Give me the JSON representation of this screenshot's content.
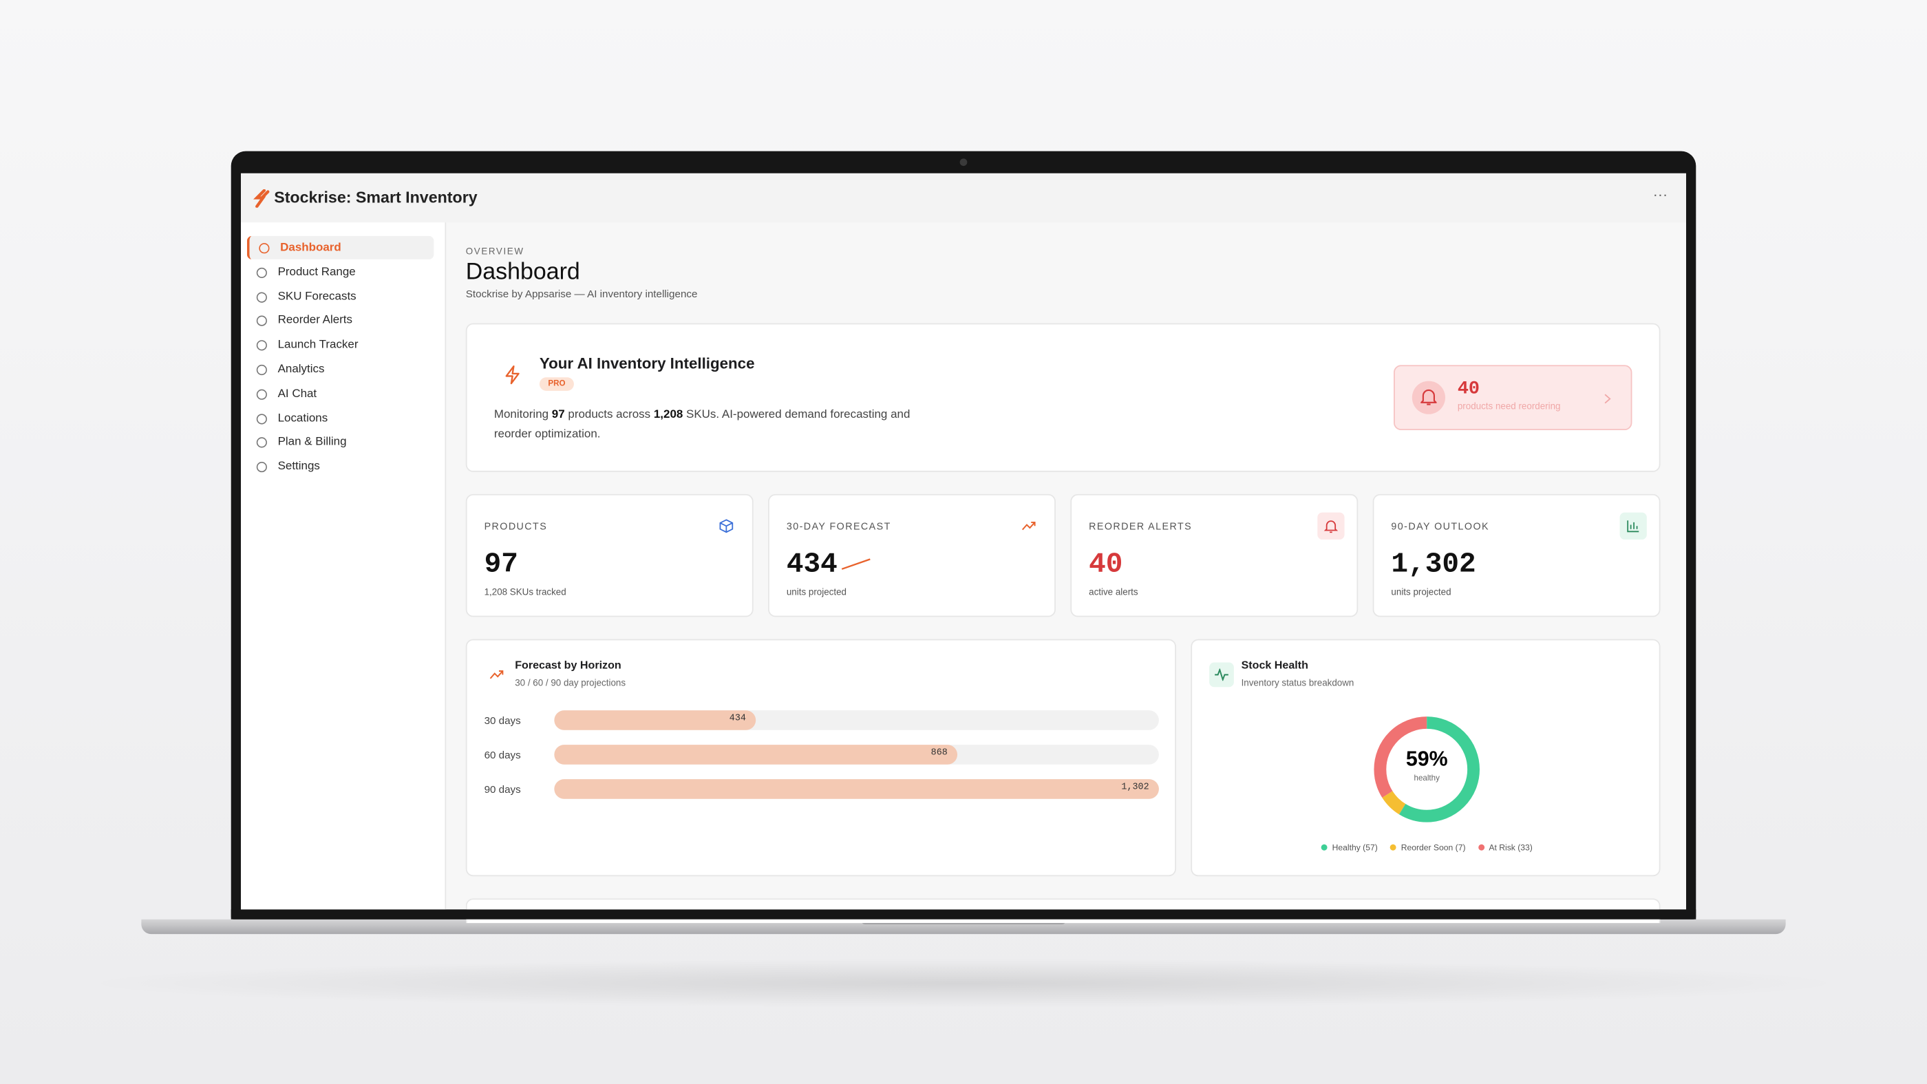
{
  "app": {
    "title": "Stockrise: Smart Inventory",
    "menu": "···"
  },
  "sidebar": {
    "items": [
      "Dashboard",
      "Product Range",
      "SKU Forecasts",
      "Reorder Alerts",
      "Launch Tracker",
      "Analytics",
      "AI Chat",
      "Locations",
      "Plan & Billing",
      "Settings"
    ],
    "active": 0
  },
  "header": {
    "eyebrow": "OVERVIEW",
    "title": "Dashboard",
    "subtitle": "Stockrise by Appsarise — AI inventory intelligence"
  },
  "hero": {
    "title": "Your AI Inventory Intelligence",
    "badge": "PRO",
    "description": [
      "Monitoring ",
      "97",
      " products across ",
      "1,208",
      " SKUs. AI-powered demand forecasting and reorder optimization."
    ],
    "alert": {
      "count": "40",
      "text": "products need reordering"
    }
  },
  "stats": [
    {
      "label": "PRODUCTS",
      "value": "97",
      "sub": "1,208 SKUs tracked"
    },
    {
      "label": "30-DAY FORECAST",
      "value": "434",
      "sub": "units projected"
    },
    {
      "label": "REORDER ALERTS",
      "value": "40",
      "sub": "active alerts"
    },
    {
      "label": "90-DAY OUTLOOK",
      "value": "1,302",
      "sub": "units projected"
    }
  ],
  "forecast": {
    "title": "Forecast by Horizon",
    "subtitle": "30 / 60 / 90 day projections",
    "categories": [
      "30 days",
      "60 days",
      "90 days"
    ],
    "values": [
      434,
      868,
      1302
    ],
    "value_labels": [
      "434",
      "868",
      "1,302"
    ],
    "color": "#f4c9b3"
  },
  "stock_health": {
    "title": "Stock Health",
    "subtitle": "Inventory status breakdown",
    "center_value": "59%",
    "center_label": "healthy",
    "segments": [
      {
        "label": "Healthy (57)",
        "value": 57,
        "color": "#3ecf96"
      },
      {
        "label": "Reorder Soon (7)",
        "value": 7,
        "color": "#f5be32"
      },
      {
        "label": "At Risk (33)",
        "value": 33,
        "color": "#f07272"
      }
    ]
  }
}
